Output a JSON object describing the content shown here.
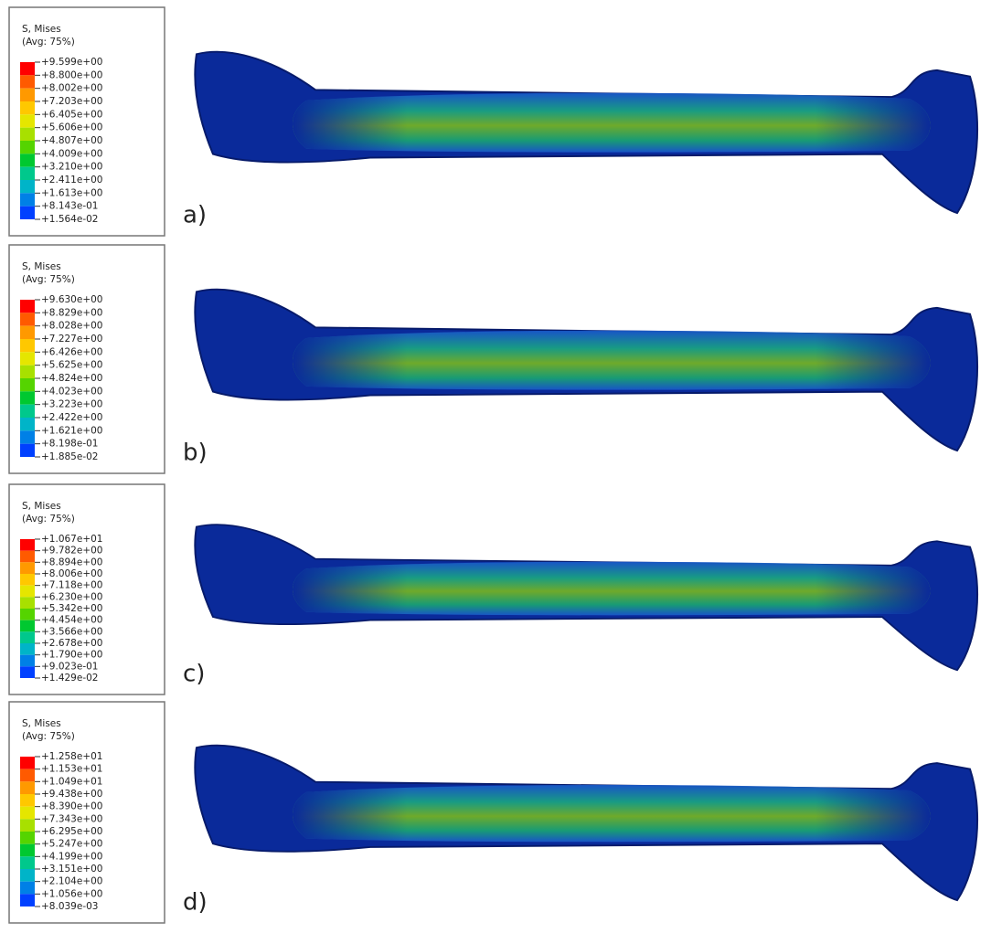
{
  "panels": [
    {
      "label": "a)",
      "legend": {
        "title": "S, Mises",
        "subtitle": "(Avg: 75%)",
        "labels": [
          "+9.599e+00",
          "+8.800e+00",
          "+8.002e+00",
          "+7.203e+00",
          "+6.405e+00",
          "+5.606e+00",
          "+4.807e+00",
          "+4.009e+00",
          "+3.210e+00",
          "+2.411e+00",
          "+1.613e+00",
          "+8.143e-01",
          "+1.564e-02"
        ]
      }
    },
    {
      "label": "b)",
      "legend": {
        "title": "S, Mises",
        "subtitle": "(Avg: 75%)",
        "labels": [
          "+9.630e+00",
          "+8.829e+00",
          "+8.028e+00",
          "+7.227e+00",
          "+6.426e+00",
          "+5.625e+00",
          "+4.824e+00",
          "+4.023e+00",
          "+3.223e+00",
          "+2.422e+00",
          "+1.621e+00",
          "+8.198e-01",
          "+1.885e-02"
        ]
      }
    },
    {
      "label": "c)",
      "legend": {
        "title": "S, Mises",
        "subtitle": "(Avg: 75%)",
        "labels": [
          "+1.067e+01",
          "+9.782e+00",
          "+8.894e+00",
          "+8.006e+00",
          "+7.118e+00",
          "+6.230e+00",
          "+5.342e+00",
          "+4.454e+00",
          "+3.566e+00",
          "+2.678e+00",
          "+1.790e+00",
          "+9.023e-01",
          "+1.429e-02"
        ]
      }
    },
    {
      "label": "d)",
      "legend": {
        "title": "S, Mises",
        "subtitle": "(Avg: 75%)",
        "labels": [
          "+1.258e+01",
          "+1.153e+01",
          "+1.049e+01",
          "+9.438e+00",
          "+8.390e+00",
          "+7.343e+00",
          "+6.295e+00",
          "+5.247e+00",
          "+4.199e+00",
          "+3.151e+00",
          "+2.104e+00",
          "+1.056e+00",
          "+8.039e-03"
        ]
      }
    }
  ],
  "legend_colors": [
    "#ff0000",
    "#ff5a00",
    "#ff9900",
    "#ffc800",
    "#e5e600",
    "#a8e000",
    "#55d400",
    "#00c830",
    "#00c88c",
    "#00b4c8",
    "#0080e6",
    "#0040ff",
    "#0000ff"
  ]
}
